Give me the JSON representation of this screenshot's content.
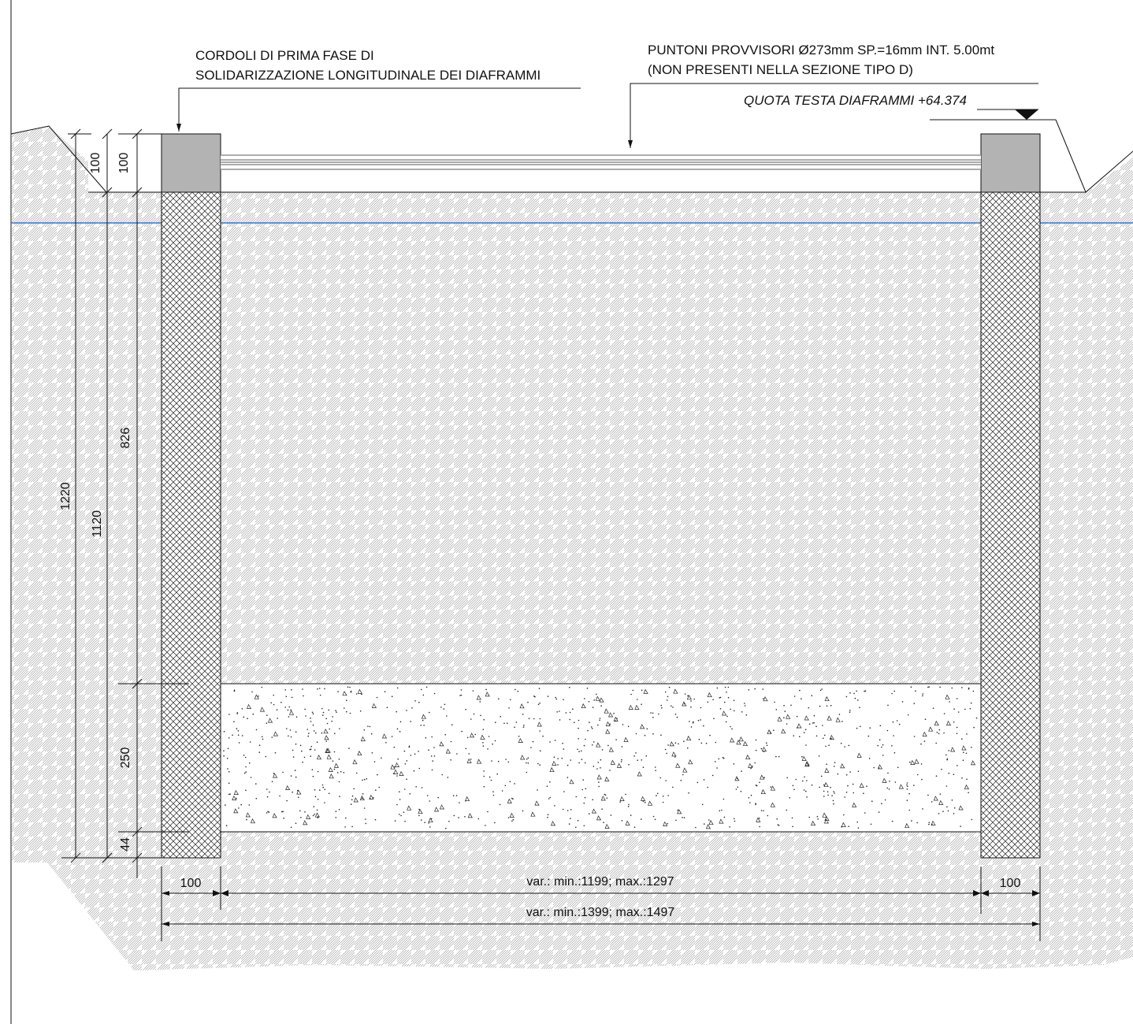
{
  "notes": {
    "cordoli_line1": "CORDOLI DI PRIMA FASE DI",
    "cordoli_line2": "SOLIDARIZZAZIONE LONGITUDINALE DEI DIAFRAMMI",
    "puntoni_line1": "PUNTONI PROVVISORI Ø273mm SP.=16mm INT. 5.00mt",
    "puntoni_line2": "(NON PRESENTI NELLA SEZIONE TIPO D)",
    "quota": "QUOTA TESTA DIAFRAMMI +64.374"
  },
  "dimensions": {
    "left_top_100_a": "100",
    "left_top_100_b": "100",
    "total_1220": "1220",
    "depth_1120": "1120",
    "excavation_826": "826",
    "plug_250": "250",
    "bottom_44": "44",
    "wall_left_100": "100",
    "wall_right_100": "100",
    "inner_width": "var.: min.:1199; max.:1297",
    "outer_width": "var.: min.:1399; max.:1497"
  },
  "colors": {
    "line": "#111111",
    "cap_fill": "#b3b3b3",
    "water_line": "#3b78b5",
    "soil_hatch": "#9a9a9a"
  }
}
